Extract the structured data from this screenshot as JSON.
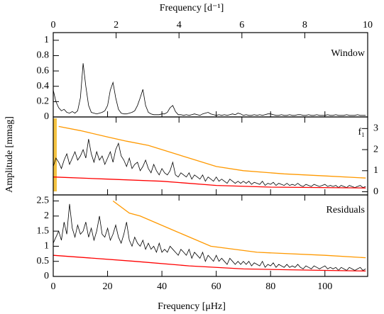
{
  "chart_data": {
    "type": "line",
    "xlabel": "Frequency [μHz]",
    "x2label": "Frequency [d⁻¹]",
    "ylabel": "Amplitude [mmag]",
    "xlim": [
      0,
      115.74
    ],
    "xticks": [
      0,
      20,
      40,
      60,
      80,
      100
    ],
    "x2lim": [
      0,
      10
    ],
    "x2ticks": [
      0,
      2,
      4,
      6,
      8,
      10
    ],
    "x": [
      0,
      1,
      2,
      3,
      4,
      5,
      6,
      7,
      8,
      9,
      10,
      11,
      12,
      13,
      14,
      15,
      16,
      17,
      18,
      19,
      20,
      21,
      22,
      23,
      24,
      25,
      26,
      27,
      28,
      29,
      30,
      31,
      32,
      33,
      34,
      35,
      36,
      37,
      38,
      39,
      40,
      41,
      42,
      43,
      44,
      45,
      46,
      47,
      48,
      49,
      50,
      51,
      52,
      53,
      54,
      55,
      56,
      57,
      58,
      59,
      60,
      61,
      62,
      63,
      64,
      65,
      66,
      67,
      68,
      69,
      70,
      71,
      72,
      73,
      74,
      75,
      76,
      77,
      78,
      79,
      80,
      81,
      82,
      83,
      84,
      85,
      86,
      87,
      88,
      89,
      90,
      91,
      92,
      93,
      94,
      95,
      96,
      97,
      98,
      99,
      100,
      101,
      102,
      103,
      104,
      105,
      106,
      107,
      108,
      109,
      110,
      111,
      112,
      113,
      114,
      115
    ],
    "panels": [
      {
        "label": "Window",
        "ylim": [
          0,
          1.1
        ],
        "yticks": [
          0,
          0.2,
          0.4,
          0.6,
          0.8,
          1
        ],
        "ytick_side": "left",
        "series": [
          {
            "color": "#000000",
            "values": [
              0.35,
              0.2,
              0.12,
              0.08,
              0.1,
              0.06,
              0.05,
              0.07,
              0.05,
              0.08,
              0.25,
              0.7,
              0.4,
              0.15,
              0.06,
              0.05,
              0.04,
              0.05,
              0.06,
              0.08,
              0.15,
              0.35,
              0.45,
              0.25,
              0.1,
              0.05,
              0.04,
              0.04,
              0.05,
              0.06,
              0.08,
              0.15,
              0.25,
              0.36,
              0.15,
              0.06,
              0.04,
              0.03,
              0.03,
              0.03,
              0.04,
              0.04,
              0.06,
              0.12,
              0.15,
              0.07,
              0.03,
              0.03,
              0.02,
              0.03,
              0.02,
              0.03,
              0.04,
              0.03,
              0.02,
              0.04,
              0.05,
              0.06,
              0.04,
              0.03,
              0.02,
              0.03,
              0.02,
              0.03,
              0.02,
              0.03,
              0.04,
              0.03,
              0.05,
              0.04,
              0.02,
              0.03,
              0.02,
              0.02,
              0.03,
              0.02,
              0.03,
              0.02,
              0.03,
              0.04,
              0.04,
              0.03,
              0.02,
              0.02,
              0.03,
              0.02,
              0.02,
              0.03,
              0.02,
              0.02,
              0.03,
              0.03,
              0.02,
              0.02,
              0.03,
              0.02,
              0.02,
              0.03,
              0.02,
              0.02,
              0.02,
              0.03,
              0.02,
              0.02,
              0.03,
              0.02,
              0.02,
              0.02,
              0.03,
              0.02,
              0.02,
              0.02,
              0.03,
              0.02,
              0.02,
              0.02
            ]
          }
        ]
      },
      {
        "label": "f₁",
        "ylim": [
          -0.15,
          3.55
        ],
        "yticks": [
          0,
          1,
          2,
          3
        ],
        "ytick_side": "right",
        "series": [
          {
            "color": "#000000",
            "values": [
              1.2,
              1.6,
              1.4,
              1.1,
              1.5,
              1.8,
              1.3,
              1.6,
              1.9,
              1.5,
              1.7,
              2.0,
              1.6,
              2.5,
              1.8,
              1.4,
              1.9,
              1.5,
              1.7,
              1.3,
              1.6,
              1.9,
              1.4,
              2.0,
              2.3,
              1.7,
              1.5,
              1.2,
              1.6,
              1.1,
              1.3,
              1.4,
              1.0,
              1.2,
              1.5,
              1.1,
              0.9,
              1.3,
              1.0,
              0.8,
              1.1,
              0.9,
              0.8,
              1.0,
              1.4,
              0.8,
              0.7,
              0.9,
              0.8,
              0.7,
              0.9,
              0.6,
              0.8,
              0.7,
              0.6,
              0.8,
              0.5,
              0.7,
              0.6,
              0.5,
              0.7,
              0.5,
              0.6,
              0.5,
              0.4,
              0.6,
              0.5,
              0.4,
              0.5,
              0.4,
              0.5,
              0.4,
              0.5,
              0.35,
              0.45,
              0.4,
              0.35,
              0.5,
              0.3,
              0.4,
              0.35,
              0.45,
              0.3,
              0.4,
              0.35,
              0.3,
              0.4,
              0.3,
              0.35,
              0.3,
              0.4,
              0.3,
              0.25,
              0.35,
              0.3,
              0.25,
              0.35,
              0.3,
              0.25,
              0.3,
              0.35,
              0.25,
              0.3,
              0.25,
              0.3,
              0.2,
              0.3,
              0.25,
              0.2,
              0.3,
              0.25,
              0.2,
              0.25,
              0.3,
              0.2,
              0.25
            ]
          },
          {
            "color": "#ff9900",
            "x": [
              2,
              10,
              20,
              27,
              35,
              50,
              60,
              70,
              85,
              100,
              115
            ],
            "values": [
              3.1,
              2.9,
              2.6,
              2.4,
              2.2,
              1.6,
              1.2,
              1.0,
              0.85,
              0.75,
              0.65
            ]
          },
          {
            "color": "#ff0000",
            "x": [
              0,
              20,
              40,
              60,
              80,
              115
            ],
            "values": [
              0.7,
              0.6,
              0.5,
              0.3,
              0.22,
              0.18
            ]
          }
        ]
      },
      {
        "label": "Residuals",
        "ylim": [
          0,
          2.7
        ],
        "yticks": [
          0,
          0.5,
          1,
          1.5,
          2,
          2.5
        ],
        "ytick_side": "left",
        "series": [
          {
            "color": "#000000",
            "values": [
              1.1,
              1.3,
              1.5,
              1.2,
              1.8,
              1.4,
              2.4,
              1.6,
              1.3,
              1.7,
              1.4,
              1.5,
              1.8,
              1.3,
              1.6,
              1.2,
              1.5,
              2.0,
              1.4,
              1.3,
              1.6,
              1.2,
              1.4,
              1.7,
              1.3,
              1.1,
              1.4,
              1.8,
              1.2,
              1.0,
              1.3,
              1.1,
              1.0,
              1.2,
              0.9,
              1.1,
              0.9,
              1.0,
              0.8,
              1.1,
              0.8,
              0.9,
              0.8,
              1.0,
              0.9,
              0.8,
              0.7,
              0.9,
              0.8,
              0.7,
              0.9,
              0.6,
              0.8,
              0.7,
              0.6,
              0.8,
              0.5,
              0.7,
              0.6,
              0.5,
              0.7,
              0.5,
              0.6,
              0.5,
              0.4,
              0.6,
              0.5,
              0.4,
              0.5,
              0.4,
              0.5,
              0.4,
              0.5,
              0.35,
              0.45,
              0.4,
              0.35,
              0.5,
              0.3,
              0.4,
              0.35,
              0.45,
              0.3,
              0.4,
              0.35,
              0.3,
              0.4,
              0.3,
              0.35,
              0.3,
              0.4,
              0.3,
              0.25,
              0.35,
              0.3,
              0.25,
              0.35,
              0.3,
              0.25,
              0.3,
              0.35,
              0.25,
              0.3,
              0.25,
              0.3,
              0.2,
              0.3,
              0.25,
              0.2,
              0.3,
              0.25,
              0.2,
              0.25,
              0.3,
              0.2,
              0.25
            ]
          },
          {
            "color": "#ff9900",
            "x": [
              22,
              28,
              32,
              45,
              58,
              75,
              100,
              115
            ],
            "values": [
              2.5,
              2.1,
              2.0,
              1.5,
              1.0,
              0.8,
              0.7,
              0.62
            ]
          },
          {
            "color": "#ff0000",
            "x": [
              0,
              15,
              30,
              50,
              70,
              100,
              115
            ],
            "values": [
              0.7,
              0.6,
              0.5,
              0.35,
              0.25,
              0.2,
              0.18
            ]
          }
        ]
      }
    ]
  }
}
